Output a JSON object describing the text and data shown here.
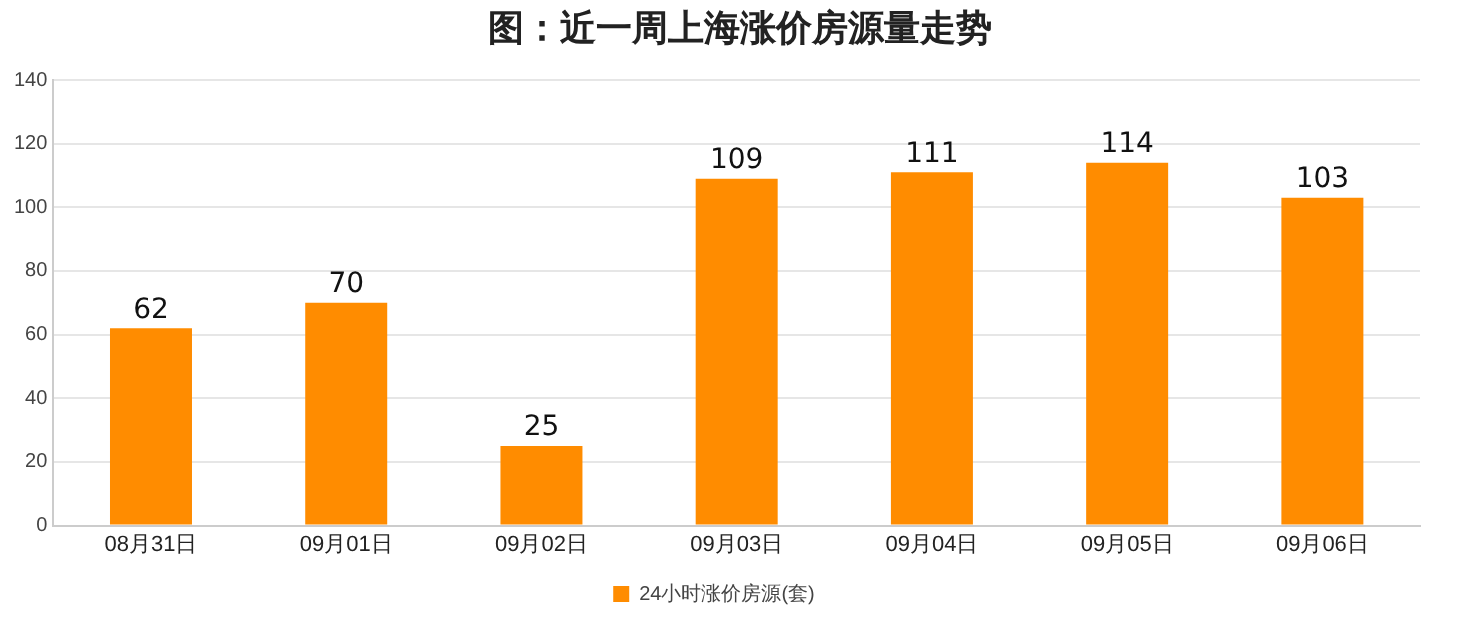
{
  "chart_data": {
    "type": "bar",
    "title": "图：近一周上海涨价房源量走势",
    "categories": [
      "08月31日",
      "09月01日",
      "09月02日",
      "09月03日",
      "09月04日",
      "09月05日",
      "09月06日"
    ],
    "series": [
      {
        "name": "24小时涨价房源(套)",
        "color": "#ff8c00",
        "values": [
          62,
          70,
          25,
          109,
          111,
          114,
          103
        ]
      }
    ],
    "ylim": [
      0,
      140
    ],
    "yticks": [
      0,
      20,
      40,
      60,
      80,
      100,
      120,
      140
    ],
    "grid": "y",
    "legend": "bottom",
    "data_labels": true
  }
}
